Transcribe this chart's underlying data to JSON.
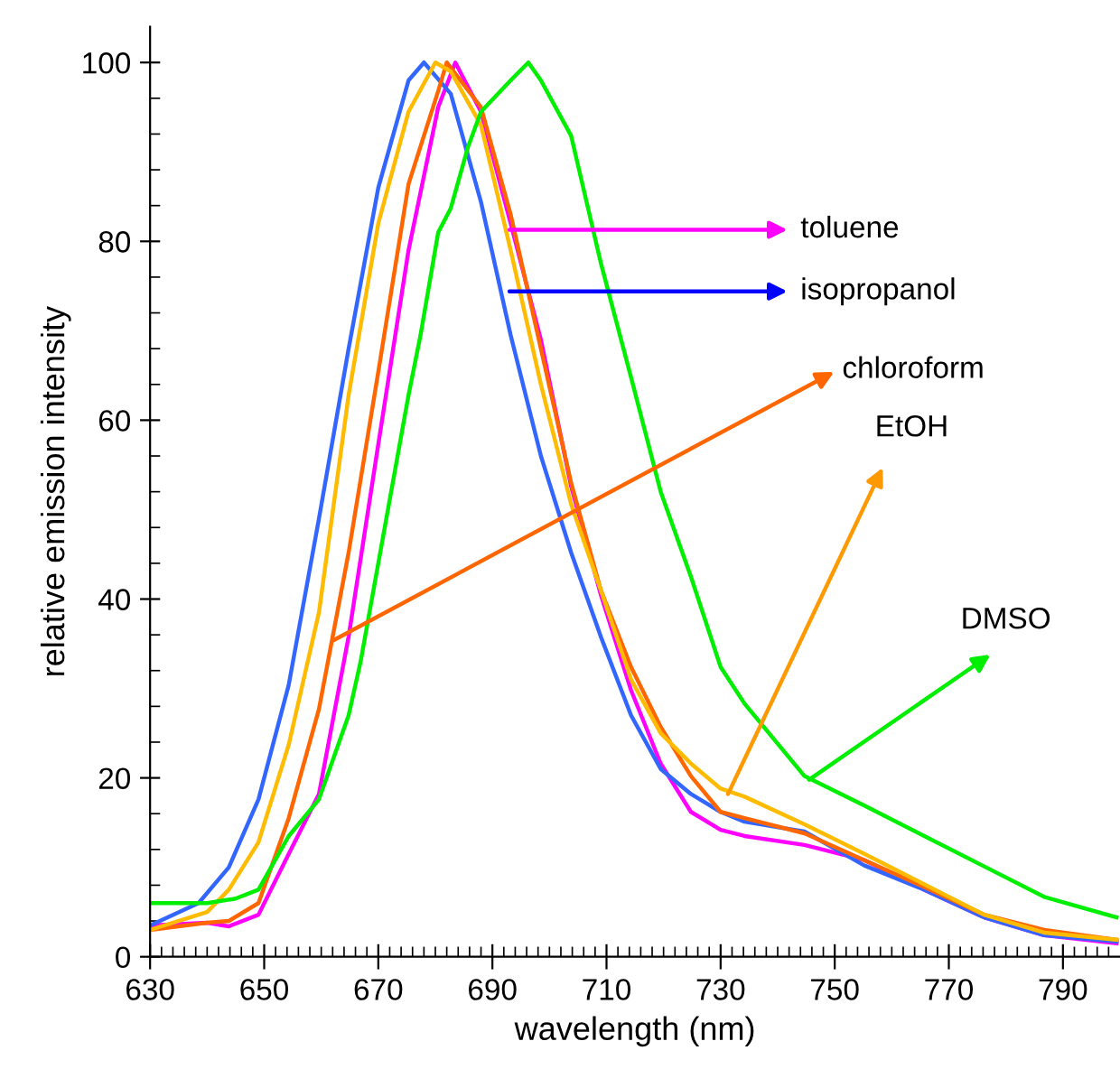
{
  "chart_data": {
    "type": "line",
    "xlabel": "wavelength (nm)",
    "ylabel": "relative emission intensity",
    "xlim": [
      630,
      800
    ],
    "ylim": [
      0,
      104
    ],
    "xticks": [
      630,
      {
        "value": 632,
        "label": null
      },
      {
        "value": 634,
        "label": null
      },
      {
        "value": 636,
        "label": null
      },
      {
        "value": 638,
        "label": null
      },
      {
        "value": 640,
        "label": null
      },
      {
        "value": 642,
        "label": null
      },
      {
        "value": 644,
        "label": null
      },
      {
        "value": 646,
        "label": null
      },
      {
        "value": 648,
        "label": null
      },
      650,
      {
        "value": 652,
        "label": null
      },
      {
        "value": 654,
        "label": null
      },
      {
        "value": 656,
        "label": null
      },
      {
        "value": 658,
        "label": null
      },
      {
        "value": 660,
        "label": null
      },
      {
        "value": 662,
        "label": null
      },
      {
        "value": 664,
        "label": null
      },
      {
        "value": 666,
        "label": null
      },
      {
        "value": 668,
        "label": null
      },
      670,
      {
        "value": 672,
        "label": null
      },
      {
        "value": 674,
        "label": null
      },
      {
        "value": 676,
        "label": null
      },
      {
        "value": 678,
        "label": null
      },
      {
        "value": 680,
        "label": null
      },
      {
        "value": 682,
        "label": null
      },
      {
        "value": 684,
        "label": null
      },
      {
        "value": 686,
        "label": null
      },
      {
        "value": 688,
        "label": null
      },
      690,
      {
        "value": 692,
        "label": null
      },
      {
        "value": 694,
        "label": null
      },
      {
        "value": 696,
        "label": null
      },
      {
        "value": 698,
        "label": null
      },
      {
        "value": 700,
        "label": null
      },
      {
        "value": 702,
        "label": null
      },
      {
        "value": 704,
        "label": null
      },
      {
        "value": 706,
        "label": null
      },
      {
        "value": 708,
        "label": null
      },
      710,
      {
        "value": 712,
        "label": null
      },
      {
        "value": 714,
        "label": null
      },
      {
        "value": 716,
        "label": null
      },
      {
        "value": 718,
        "label": null
      },
      {
        "value": 720,
        "label": null
      },
      {
        "value": 722,
        "label": null
      },
      {
        "value": 724,
        "label": null
      },
      {
        "value": 726,
        "label": null
      },
      {
        "value": 728,
        "label": null
      },
      730,
      {
        "value": 732,
        "label": null
      },
      {
        "value": 734,
        "label": null
      },
      {
        "value": 736,
        "label": null
      },
      {
        "value": 738,
        "label": null
      },
      {
        "value": 740,
        "label": null
      },
      {
        "value": 742,
        "label": null
      },
      {
        "value": 744,
        "label": null
      },
      {
        "value": 746,
        "label": null
      },
      {
        "value": 748,
        "label": null
      },
      750,
      {
        "value": 752,
        "label": null
      },
      {
        "value": 754,
        "label": null
      },
      {
        "value": 756,
        "label": null
      },
      {
        "value": 758,
        "label": null
      },
      {
        "value": 760,
        "label": null
      },
      {
        "value": 762,
        "label": null
      },
      {
        "value": 764,
        "label": null
      },
      {
        "value": 766,
        "label": null
      },
      {
        "value": 768,
        "label": null
      },
      770,
      {
        "value": 772,
        "label": null
      },
      {
        "value": 774,
        "label": null
      },
      {
        "value": 776,
        "label": null
      },
      {
        "value": 778,
        "label": null
      },
      {
        "value": 780,
        "label": null
      },
      {
        "value": 782,
        "label": null
      },
      {
        "value": 784,
        "label": null
      },
      {
        "value": 786,
        "label": null
      },
      {
        "value": 788,
        "label": null
      },
      790,
      {
        "value": 792,
        "label": null
      },
      {
        "value": 794,
        "label": null
      },
      {
        "value": 796,
        "label": null
      },
      {
        "value": 798,
        "label": null
      }
    ],
    "yticks": [
      0,
      {
        "value": 4,
        "label": null
      },
      {
        "value": 8,
        "label": null
      },
      {
        "value": 12,
        "label": null
      },
      {
        "value": 16,
        "label": null
      },
      20,
      {
        "value": 24,
        "label": null
      },
      {
        "value": 28,
        "label": null
      },
      {
        "value": 32,
        "label": null
      },
      {
        "value": 36,
        "label": null
      },
      40,
      {
        "value": 44,
        "label": null
      },
      {
        "value": 48,
        "label": null
      },
      {
        "value": 52,
        "label": null
      },
      {
        "value": 56,
        "label": null
      },
      60,
      {
        "value": 64,
        "label": null
      },
      {
        "value": 68,
        "label": null
      },
      {
        "value": 72,
        "label": null
      },
      {
        "value": 76,
        "label": null
      },
      80,
      {
        "value": 84,
        "label": null
      },
      {
        "value": 88,
        "label": null
      },
      {
        "value": 92,
        "label": null
      },
      {
        "value": 96,
        "label": null
      },
      100
    ],
    "grid": false,
    "legend": false,
    "line_style": "solid",
    "series": [
      {
        "color": "#ff00ff",
        "x": [
          630,
          640,
          643.8,
          649,
          654.3,
          659.6,
          664.8,
          670,
          675.3,
          680.5,
          683.5,
          688,
          693.2,
          698.5,
          703.8,
          709,
          714.3,
          719.5,
          724.8,
          730,
          734.2,
          744.7,
          755.2,
          765.7,
          776.2,
          786.7,
          799.4
        ],
        "values": [
          3.5,
          3.8,
          3.4,
          4.7,
          11.5,
          18.2,
          35.8,
          57.3,
          79,
          95,
          100,
          94.5,
          82,
          69,
          52.6,
          40.5,
          29.8,
          21.6,
          16.2,
          14.2,
          13.5,
          12.5,
          10.8,
          7.5,
          4.4,
          2.4,
          1.5
        ]
      },
      {
        "color": "#3366ff",
        "x": [
          630,
          638.5,
          643.8,
          649,
          654.3,
          659.6,
          664.8,
          670,
          675.3,
          678,
          682.7,
          688,
          693.2,
          698.5,
          703.8,
          709,
          714.3,
          719.5,
          724.8,
          730,
          734.2,
          744.7,
          755.2,
          765.7,
          776.2,
          786.7,
          799.4
        ],
        "values": [
          3.5,
          6,
          10,
          17.6,
          30.4,
          49,
          68,
          86,
          98,
          100,
          96.5,
          84.4,
          69.5,
          56,
          45.2,
          35.8,
          27,
          21,
          18.2,
          16.2,
          15.1,
          14,
          10.2,
          7.5,
          4.4,
          2.4,
          1.7
        ]
      },
      {
        "color": "#ff6600",
        "x": [
          630,
          640,
          643.8,
          649,
          654.3,
          659.6,
          664.8,
          670,
          675.3,
          680.5,
          682,
          688,
          693.2,
          698.5,
          703.8,
          709,
          714.3,
          719.5,
          724.8,
          730,
          734.2,
          744.7,
          755.2,
          765.7,
          776.2,
          786.7,
          799.4
        ],
        "values": [
          3,
          3.8,
          4,
          6,
          15.5,
          27.7,
          45.2,
          65.4,
          86.4,
          96.8,
          100,
          95,
          83,
          68,
          53,
          41,
          32.4,
          25.7,
          20.2,
          16.2,
          15.5,
          13.8,
          10.8,
          7.8,
          4.7,
          3,
          1.9
        ]
      },
      {
        "color": "#ffbb00",
        "x": [
          630,
          640,
          643.8,
          649,
          654.3,
          659.6,
          664.8,
          670,
          675.3,
          680,
          682.7,
          688,
          693.2,
          698.5,
          703.8,
          709,
          714.3,
          719.5,
          724.8,
          730,
          734.2,
          744.7,
          755.2,
          765.7,
          776.2,
          786.7,
          799.4
        ],
        "values": [
          3,
          5,
          7.5,
          12.8,
          23.7,
          38.5,
          62.8,
          82,
          94.5,
          100,
          99,
          93,
          79,
          64,
          50.6,
          41,
          31,
          25,
          21.6,
          18.8,
          17.9,
          14.8,
          11.5,
          8.1,
          4.7,
          2.7,
          1.9
        ]
      },
      {
        "color": "#00ee00",
        "x": [
          630,
          640,
          645,
          649,
          654.3,
          659.6,
          664.8,
          666.9,
          670,
          675.3,
          677.4,
          680.5,
          682.7,
          685.7,
          688,
          693.2,
          696.3,
          698.5,
          703.8,
          709,
          714.3,
          719.5,
          724.8,
          730,
          734.2,
          744.7,
          755.2,
          765.7,
          776.2,
          786.7,
          799.4
        ],
        "values": [
          6,
          6,
          6.5,
          7.5,
          13.5,
          17.6,
          27,
          33,
          44,
          62.8,
          69.5,
          81,
          83.7,
          90.5,
          94.5,
          98,
          100,
          98,
          91.8,
          77.6,
          64.8,
          52,
          42.5,
          32.4,
          28.3,
          20.2,
          16.9,
          13.5,
          10.1,
          6.7,
          4.4
        ]
      }
    ],
    "annotations": [
      {
        "text": "toluene",
        "x": 693,
        "y": 81.3
      },
      {
        "text": "isopropanol",
        "x": 693,
        "y": 74.4
      },
      {
        "text": "chloroform",
        "x": 662.2,
        "y": 35.4
      },
      {
        "text": "EtOH",
        "x": 731.3,
        "y": 18.2
      },
      {
        "text": "DMSO",
        "x": 745.5,
        "y": 19.8
      }
    ]
  }
}
